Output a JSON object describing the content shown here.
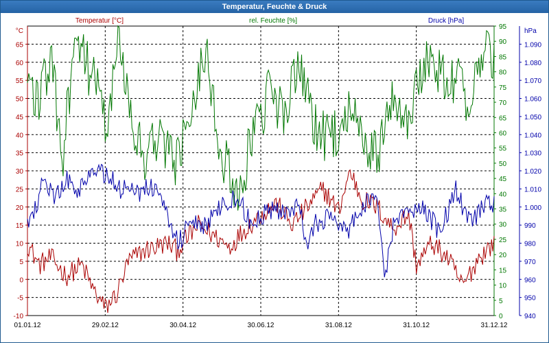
{
  "window": {
    "title": "Temperatur, Feuchte & Druck"
  },
  "colors": {
    "temperature": "#aa0000",
    "humidity": "#007700",
    "pressure": "#0000aa",
    "titlebar": "#2a6aae",
    "grid": "#000000"
  },
  "chart_data": {
    "type": "line",
    "title": "Temperatur, Feuchte & Druck",
    "grid": true,
    "x_ticks": [
      "01.01.12",
      "29.02.12",
      "30.04.12",
      "30.06.12",
      "31.08.12",
      "31.10.12",
      "31.12.12"
    ],
    "axes": {
      "temperature": {
        "label": "Temperatur [°C]",
        "unit": "°C",
        "range": [
          -10,
          70
        ],
        "ticks": [
          "65",
          "60",
          "55",
          "50",
          "45",
          "40",
          "35",
          "30",
          "25",
          "20",
          "15",
          "10",
          "5",
          "0",
          "-5",
          "-10"
        ]
      },
      "humidity": {
        "label": "rel. Feuchte [%]",
        "unit": "%",
        "range": [
          0,
          95
        ],
        "ticks": [
          "95",
          "90",
          "85",
          "80",
          "75",
          "70",
          "65",
          "60",
          "55",
          "50",
          "45",
          "40",
          "35",
          "30",
          "25",
          "20",
          "15",
          "10",
          "5",
          "0"
        ]
      },
      "pressure": {
        "label": "Druck [hPa]",
        "unit": "hPa",
        "range": [
          940,
          1100
        ],
        "ticks": [
          "1.090",
          "1.080",
          "1.070",
          "1.060",
          "1.050",
          "1.040",
          "1.030",
          "1.020",
          "1.010",
          "1.000",
          "990",
          "980",
          "970",
          "960",
          "950",
          "940"
        ]
      }
    },
    "series": [
      {
        "name": "Temperatur [°C]",
        "axis": "temperature",
        "color": "#aa0000",
        "x": [
          0,
          0.15,
          0.3,
          0.5,
          0.7,
          0.85,
          1,
          1.15,
          1.3,
          1.5,
          1.65,
          1.8,
          1.92,
          2,
          2.2,
          2.4,
          2.6,
          2.8,
          3,
          3.2,
          3.4,
          3.6,
          3.8,
          4,
          4.15,
          4.3,
          4.5,
          4.7,
          4.9,
          5,
          5.2,
          5.4,
          5.6,
          5.8,
          6
        ],
        "y": [
          10,
          4,
          6,
          1,
          4,
          -3,
          -8,
          -4,
          5,
          8,
          9,
          10,
          8,
          10,
          15,
          12,
          9,
          14,
          18,
          21,
          15,
          20,
          25,
          19,
          30,
          22,
          20,
          14,
          18,
          4,
          10,
          6,
          -2,
          6,
          10
        ]
      },
      {
        "name": "rel. Feuchte [%]",
        "axis": "humidity",
        "color": "#007700",
        "x": [
          0,
          0.15,
          0.3,
          0.45,
          0.55,
          0.65,
          0.8,
          0.95,
          1.05,
          1.15,
          1.35,
          1.5,
          1.7,
          1.9,
          2.1,
          2.3,
          2.5,
          2.7,
          2.9,
          3.1,
          3.3,
          3.5,
          3.7,
          3.9,
          4.1,
          4.3,
          4.5,
          4.7,
          4.9,
          5.1,
          5.3,
          5.5,
          5.7,
          5.9,
          6
        ],
        "y": [
          78,
          70,
          85,
          50,
          76,
          88,
          80,
          70,
          60,
          92,
          66,
          50,
          62,
          48,
          70,
          88,
          52,
          40,
          58,
          72,
          68,
          80,
          62,
          56,
          68,
          58,
          52,
          74,
          64,
          85,
          80,
          78,
          68,
          92,
          82
        ]
      },
      {
        "name": "Druck [hPa]",
        "axis": "pressure",
        "color": "#0000aa",
        "x": [
          0,
          0.2,
          0.35,
          0.5,
          0.65,
          0.8,
          1,
          1.2,
          1.4,
          1.6,
          1.75,
          1.85,
          1.95,
          2.1,
          2.3,
          2.5,
          2.7,
          2.9,
          3.1,
          3.3,
          3.5,
          3.6,
          3.7,
          3.9,
          4.1,
          4.3,
          4.5,
          4.6,
          4.7,
          4.9,
          5.1,
          5.3,
          5.5,
          5.7,
          5.9,
          6
        ],
        "y": [
          990,
          1012,
          1005,
          1015,
          1010,
          1020,
          1018,
          1010,
          1008,
          1012,
          1005,
          990,
          980,
          995,
          990,
          1000,
          1005,
          990,
          1000,
          995,
          1000,
          975,
          990,
          995,
          985,
          1000,
          1005,
          960,
          990,
          995,
          1000,
          985,
          1010,
          990,
          1005,
          1000
        ]
      }
    ]
  }
}
